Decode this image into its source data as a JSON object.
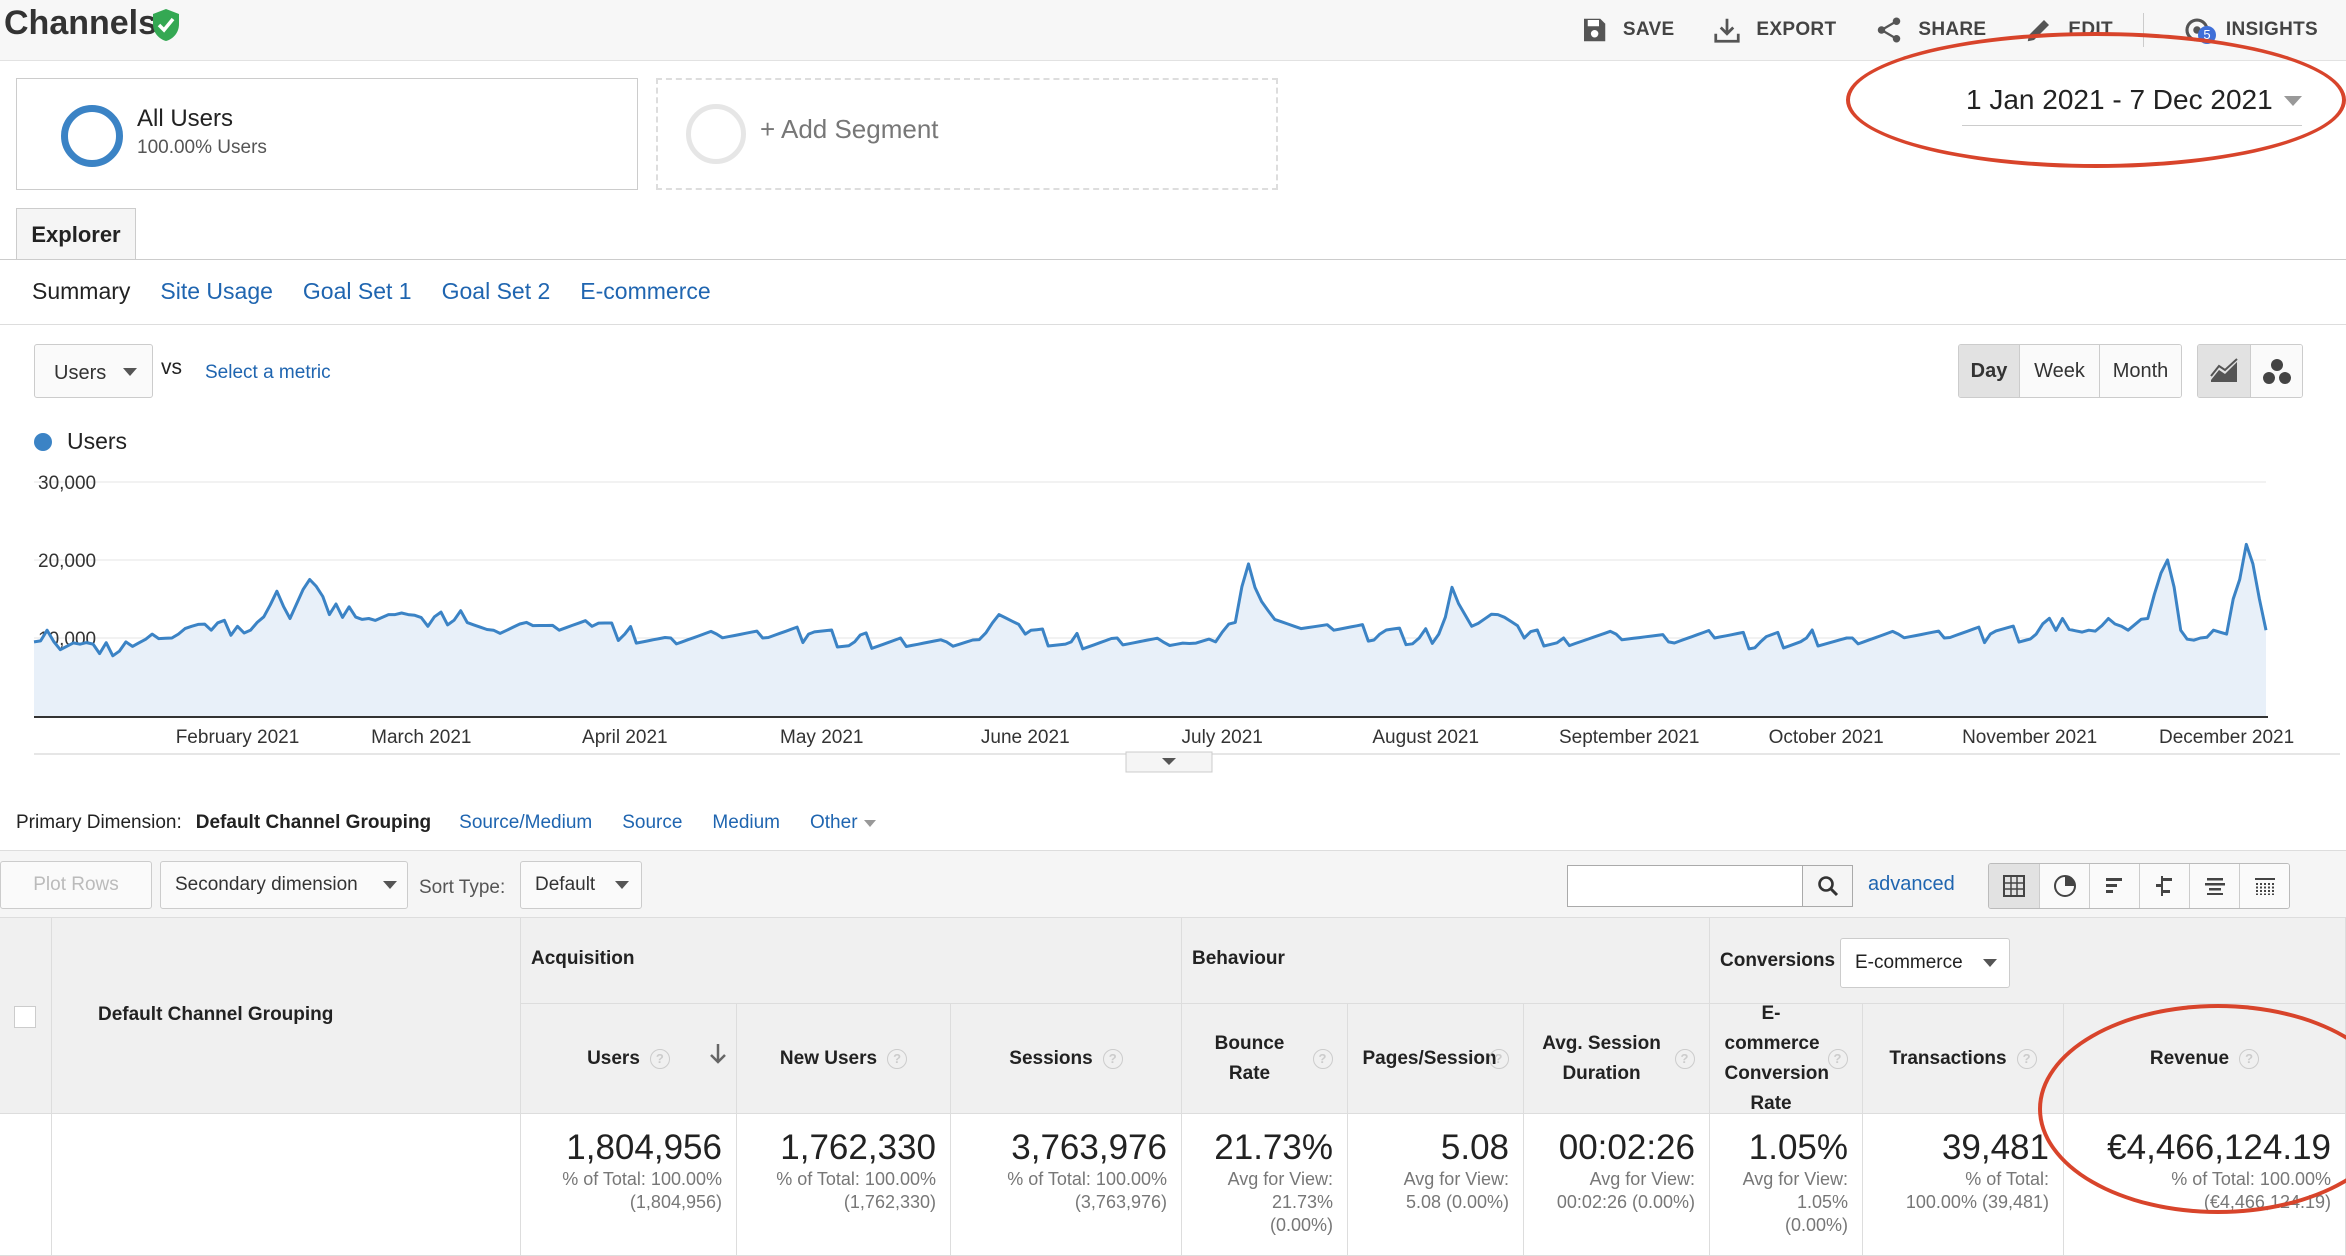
{
  "header": {
    "title": "Channels",
    "toolbar": [
      {
        "label": "SAVE",
        "icon": "save-icon"
      },
      {
        "label": "EXPORT",
        "icon": "export-icon"
      },
      {
        "label": "SHARE",
        "icon": "share-icon"
      },
      {
        "label": "EDIT",
        "icon": "edit-icon"
      },
      {
        "label": "INSIGHTS",
        "icon": "insights-icon"
      }
    ],
    "insights_badge": "5"
  },
  "segments": {
    "all_users": {
      "title": "All Users",
      "subtitle": "100.00% Users"
    },
    "add_segment": "+ Add Segment"
  },
  "date_range": "1 Jan 2021 - 7 Dec 2021",
  "tabs": {
    "explorer": "Explorer",
    "subtabs": [
      "Summary",
      "Site Usage",
      "Goal Set 1",
      "Goal Set 2",
      "E-commerce"
    ]
  },
  "metric_row": {
    "metric": "Users",
    "vs": "vs",
    "select_metric": "Select a metric",
    "periods": [
      "Day",
      "Week",
      "Month"
    ],
    "active_period": "Day"
  },
  "colors": {
    "series": "#3b83c5",
    "fill": "#e8f0f9",
    "link": "#1f65b0",
    "annotation": "#d8442b"
  },
  "chart_data": {
    "type": "area",
    "legend": [
      "Users"
    ],
    "y_ticks": [
      "30,000",
      "20,000",
      "10,000"
    ],
    "ylim": [
      0,
      30000
    ],
    "x_labels": [
      "February 2021",
      "March 2021",
      "April 2021",
      "May 2021",
      "June 2021",
      "July 2021",
      "August 2021",
      "September 2021",
      "October 2021",
      "November 2021",
      "December 2021"
    ],
    "x_range": [
      "2021-01-01",
      "2021-12-07"
    ],
    "grid": true,
    "series": [
      {
        "name": "Users",
        "points": [
          [
            "2021-01-01",
            9500
          ],
          [
            "2021-01-03",
            11000
          ],
          [
            "2021-01-05",
            8500
          ],
          [
            "2021-01-08",
            9200
          ],
          [
            "2021-01-11",
            8000
          ],
          [
            "2021-01-15",
            9500
          ],
          [
            "2021-01-19",
            10500
          ],
          [
            "2021-01-22",
            10000
          ],
          [
            "2021-01-25",
            11500
          ],
          [
            "2021-01-28",
            11000
          ],
          [
            "2021-02-01",
            11500
          ],
          [
            "2021-02-04",
            12000
          ],
          [
            "2021-02-07",
            16000
          ],
          [
            "2021-02-09",
            12500
          ],
          [
            "2021-02-12",
            17500
          ],
          [
            "2021-02-15",
            13000
          ],
          [
            "2021-02-18",
            14000
          ],
          [
            "2021-02-21",
            12500
          ],
          [
            "2021-02-24",
            13000
          ],
          [
            "2021-02-27",
            13000
          ],
          [
            "2021-03-02",
            11500
          ],
          [
            "2021-03-07",
            13500
          ],
          [
            "2021-03-12",
            11000
          ],
          [
            "2021-03-17",
            12000
          ],
          [
            "2021-03-22",
            11000
          ],
          [
            "2021-03-27",
            11500
          ],
          [
            "2021-04-01",
            10500
          ],
          [
            "2021-04-08",
            10000
          ],
          [
            "2021-04-15",
            10500
          ],
          [
            "2021-04-22",
            10000
          ],
          [
            "2021-04-29",
            10500
          ],
          [
            "2021-05-06",
            9500
          ],
          [
            "2021-05-13",
            10000
          ],
          [
            "2021-05-20",
            9500
          ],
          [
            "2021-05-25",
            9800
          ],
          [
            "2021-05-28",
            13000
          ],
          [
            "2021-06-01",
            10500
          ],
          [
            "2021-06-08",
            9500
          ],
          [
            "2021-06-15",
            10000
          ],
          [
            "2021-06-22",
            9500
          ],
          [
            "2021-06-26",
            9300
          ],
          [
            "2021-06-30",
            9500
          ],
          [
            "2021-07-03",
            12000
          ],
          [
            "2021-07-05",
            19500
          ],
          [
            "2021-07-08",
            13500
          ],
          [
            "2021-07-12",
            11500
          ],
          [
            "2021-07-18",
            11000
          ],
          [
            "2021-07-25",
            10500
          ],
          [
            "2021-07-31",
            10000
          ],
          [
            "2021-08-03",
            10500
          ],
          [
            "2021-08-05",
            16500
          ],
          [
            "2021-08-08",
            11500
          ],
          [
            "2021-08-12",
            13000
          ],
          [
            "2021-08-16",
            10000
          ],
          [
            "2021-08-22",
            10000
          ],
          [
            "2021-08-30",
            10500
          ],
          [
            "2021-09-07",
            9500
          ],
          [
            "2021-09-14",
            10000
          ],
          [
            "2021-09-21",
            9500
          ],
          [
            "2021-09-28",
            10000
          ],
          [
            "2021-10-05",
            10000
          ],
          [
            "2021-10-12",
            10500
          ],
          [
            "2021-10-19",
            10000
          ],
          [
            "2021-10-26",
            10500
          ],
          [
            "2021-11-02",
            10500
          ],
          [
            "2021-11-06",
            12500
          ],
          [
            "2021-11-10",
            11000
          ],
          [
            "2021-11-13",
            12500
          ],
          [
            "2021-11-16",
            11000
          ],
          [
            "2021-11-19",
            12500
          ],
          [
            "2021-11-22",
            20000
          ],
          [
            "2021-11-24",
            11000
          ],
          [
            "2021-11-27",
            10000
          ],
          [
            "2021-11-29",
            11000
          ],
          [
            "2021-12-01",
            10500
          ],
          [
            "2021-12-02",
            15000
          ],
          [
            "2021-12-03",
            17500
          ],
          [
            "2021-12-04",
            22000
          ],
          [
            "2021-12-05",
            19500
          ],
          [
            "2021-12-06",
            15000
          ],
          [
            "2021-12-07",
            11000
          ]
        ]
      }
    ]
  },
  "primary_dimension": {
    "label": "Primary Dimension:",
    "active": "Default Channel Grouping",
    "links": [
      "Source/Medium",
      "Source",
      "Medium",
      "Other"
    ]
  },
  "table_toolbar": {
    "plot_rows": "Plot Rows",
    "secondary_dimension": "Secondary dimension",
    "sort_type_label": "Sort Type:",
    "sort_type": "Default",
    "search_placeholder": "",
    "advanced": "advanced"
  },
  "table": {
    "dimension_header": "Default Channel Grouping",
    "groups": {
      "acquisition": "Acquisition",
      "behaviour": "Behaviour",
      "conversions": "Conversions"
    },
    "conversions_select": "E-commerce",
    "columns": [
      {
        "label": "Users",
        "total": "1,804,956",
        "sub": [
          "% of Total: 100.00%",
          "(1,804,956)"
        ]
      },
      {
        "label": "New Users",
        "total": "1,762,330",
        "sub": [
          "% of Total: 100.00%",
          "(1,762,330)"
        ]
      },
      {
        "label": "Sessions",
        "total": "3,763,976",
        "sub": [
          "% of Total: 100.00%",
          "(3,763,976)"
        ]
      },
      {
        "label": "Bounce Rate",
        "total": "21.73%",
        "sub": [
          "Avg for View:",
          "21.73%",
          "(0.00%)"
        ]
      },
      {
        "label": "Pages/Session",
        "total": "5.08",
        "sub": [
          "Avg for View:",
          "5.08 (0.00%)"
        ]
      },
      {
        "label": "Avg. Session Duration",
        "total": "00:02:26",
        "sub": [
          "Avg for View:",
          "00:02:26 (0.00%)"
        ]
      },
      {
        "label": "E-commerce Conversion Rate",
        "total": "1.05%",
        "sub": [
          "Avg for View:",
          "1.05%",
          "(0.00%)"
        ]
      },
      {
        "label": "Transactions",
        "total": "39,481",
        "sub": [
          "% of Total:",
          "100.00% (39,481)"
        ]
      },
      {
        "label": "Revenue",
        "total": "€4,466,124.19",
        "sub": [
          "% of Total: 100.00%",
          "(€4,466,124.19)"
        ]
      }
    ]
  }
}
